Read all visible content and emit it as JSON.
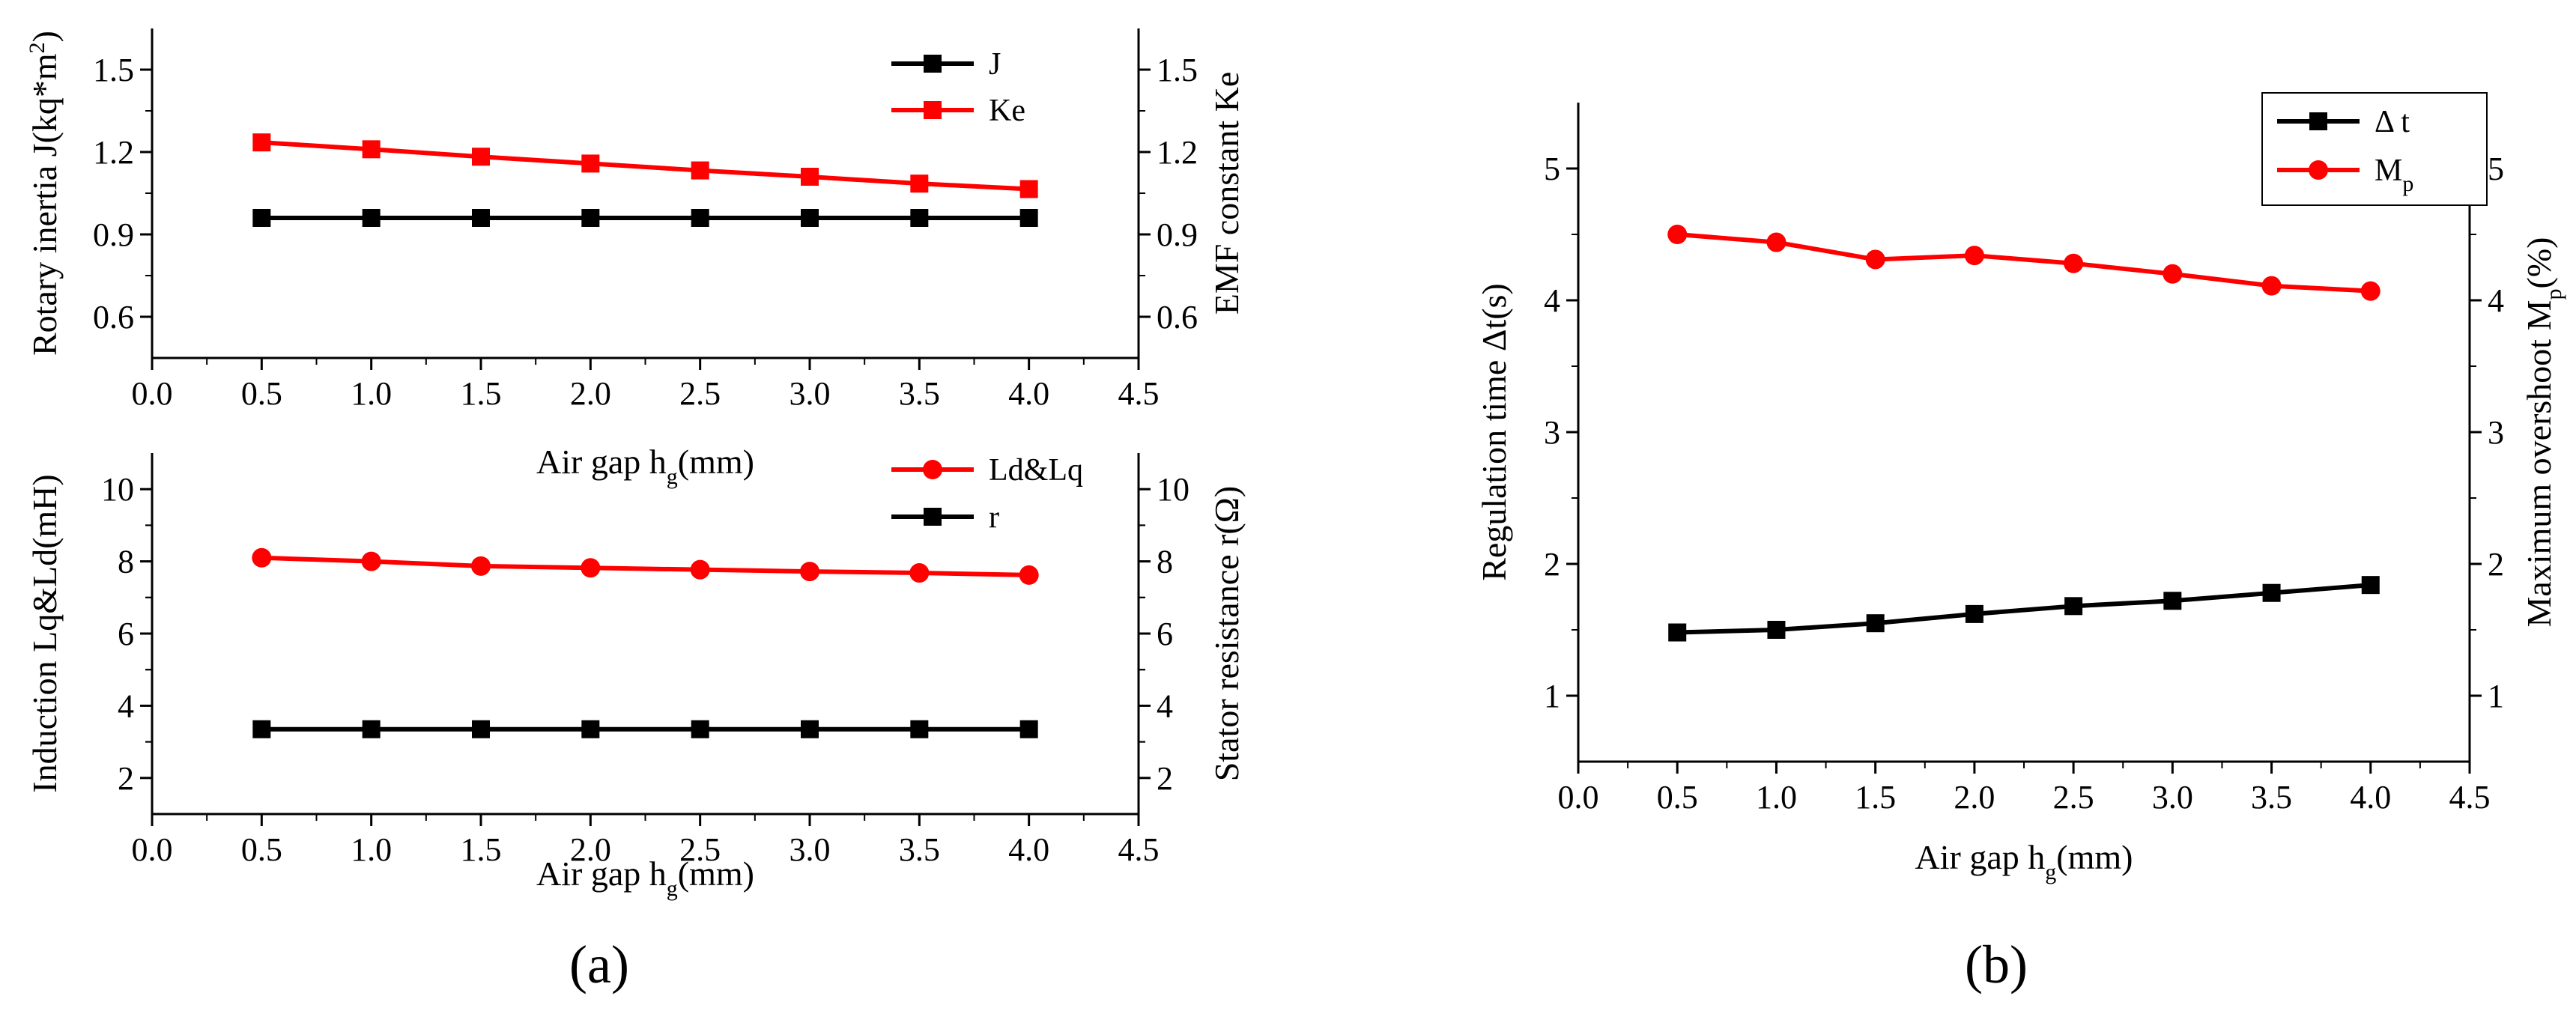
{
  "panel_labels": {
    "a": "(a)",
    "b": "(b)"
  },
  "chart_data": [
    {
      "type": "line",
      "panel": "a-top",
      "xlabel": "Air gap h_g(mm)",
      "xlabel_parts": [
        "Air gap h",
        "g",
        "(mm)"
      ],
      "ylabel": "Rotary inertia J(kq*m^2)",
      "ylabel_parts": [
        "Rotary inertia J(kq*m",
        "2",
        ")"
      ],
      "y2label": "EMF constant Ke",
      "xlim": [
        0,
        4.5
      ],
      "ylim": [
        0.45,
        1.65
      ],
      "y2lim": [
        0.45,
        1.65
      ],
      "xticks": [
        "0.0",
        "0.5",
        "1.0",
        "1.5",
        "2.0",
        "2.5",
        "3.0",
        "3.5",
        "4.0",
        "4.5"
      ],
      "yticks": [
        "0.6",
        "0.9",
        "1.2",
        "1.5"
      ],
      "y2ticks": [
        "0.6",
        "0.9",
        "1.2",
        "1.5"
      ],
      "x": [
        0.5,
        1.0,
        1.5,
        2.0,
        2.5,
        3.0,
        3.5,
        4.0
      ],
      "series": [
        {
          "name": "J",
          "axis": "left",
          "color": "#000000",
          "marker": "square",
          "values": [
            0.96,
            0.96,
            0.96,
            0.96,
            0.96,
            0.96,
            0.96,
            0.96
          ]
        },
        {
          "name": "Ke",
          "axis": "right",
          "color": "#ff0000",
          "marker": "square",
          "values": [
            1.235,
            1.21,
            1.183,
            1.158,
            1.133,
            1.11,
            1.085,
            1.065
          ]
        }
      ],
      "legend": "top-right",
      "grid": false
    },
    {
      "type": "line",
      "panel": "a-bottom",
      "xlabel": "Air gap h_g(mm)",
      "xlabel_parts": [
        "Air gap h",
        "g",
        "(mm)"
      ],
      "ylabel": "Induction Lq&Ld(mH)",
      "y2label": "Stator resistance r(Ω)",
      "xlim": [
        0,
        4.5
      ],
      "ylim": [
        1,
        11
      ],
      "y2lim": [
        1,
        11
      ],
      "xticks": [
        "0.0",
        "0.5",
        "1.0",
        "1.5",
        "2.0",
        "2.5",
        "3.0",
        "3.5",
        "4.0",
        "4.5"
      ],
      "yticks": [
        "2",
        "4",
        "6",
        "8",
        "10"
      ],
      "y2ticks": [
        "2",
        "4",
        "6",
        "8",
        "10"
      ],
      "x": [
        0.5,
        1.0,
        1.5,
        2.0,
        2.5,
        3.0,
        3.5,
        4.0
      ],
      "series": [
        {
          "name": "Ld&Lq",
          "axis": "left",
          "color": "#ff0000",
          "marker": "circle",
          "values": [
            8.1,
            8.0,
            7.87,
            7.82,
            7.77,
            7.72,
            7.68,
            7.62
          ]
        },
        {
          "name": "r",
          "axis": "right",
          "color": "#000000",
          "marker": "square",
          "values": [
            3.35,
            3.35,
            3.35,
            3.35,
            3.35,
            3.35,
            3.35,
            3.35
          ]
        }
      ],
      "legend": "top-right",
      "grid": false
    },
    {
      "type": "line",
      "panel": "b",
      "xlabel": "Air gap h_g(mm)",
      "xlabel_parts": [
        "Air gap h",
        "g",
        "(mm)"
      ],
      "ylabel": "Regulation time Δt(s)",
      "y2label": "Maximum overshoot M_p(%)",
      "y2label_parts": [
        "Maximum overshoot M",
        "p",
        "(%)"
      ],
      "xlim": [
        0,
        4.5
      ],
      "ylim": [
        0.5,
        5.5
      ],
      "y2lim": [
        0.5,
        5.5
      ],
      "xticks": [
        "0.0",
        "0.5",
        "1.0",
        "1.5",
        "2.0",
        "2.5",
        "3.0",
        "3.5",
        "4.0",
        "4.5"
      ],
      "yticks": [
        "1",
        "2",
        "3",
        "4",
        "5"
      ],
      "y2ticks": [
        "1",
        "2",
        "3",
        "4",
        "5"
      ],
      "x": [
        0.5,
        1.0,
        1.5,
        2.0,
        2.5,
        3.0,
        3.5,
        4.0
      ],
      "series": [
        {
          "name": "Δ t",
          "axis": "left",
          "color": "#000000",
          "marker": "square",
          "values": [
            1.48,
            1.5,
            1.55,
            1.62,
            1.68,
            1.72,
            1.78,
            1.84
          ]
        },
        {
          "name": "M_p",
          "name_parts": [
            "M",
            "p"
          ],
          "axis": "right",
          "color": "#ff0000",
          "marker": "circle",
          "values": [
            4.5,
            4.44,
            4.31,
            4.34,
            4.28,
            4.2,
            4.11,
            4.07
          ]
        }
      ],
      "legend": "top-right",
      "grid": false
    }
  ]
}
